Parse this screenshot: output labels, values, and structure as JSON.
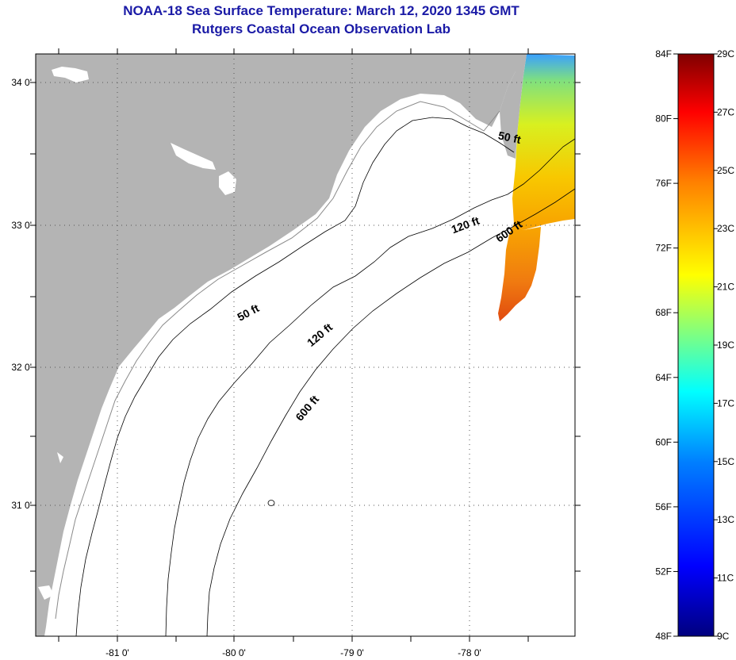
{
  "title": {
    "line1": "NOAA-18 Sea Surface Temperature:  March 12, 2020 1345 GMT",
    "line2": "Rutgers Coastal Ocean Observation Lab"
  },
  "map": {
    "lon_range": [
      -81.68,
      -77.2
    ],
    "lat_range": [
      30.2,
      34.2
    ],
    "lon_ticks": [
      "-81 0'",
      "-80 0'",
      "-79 0'",
      "-78 0'"
    ],
    "lat_ticks": [
      "34 0'",
      "33 0'",
      "32 0'",
      "31 0'"
    ],
    "land_color": "#b4b4b4",
    "water_color": "#ffffff",
    "grid": "dotted"
  },
  "contours": {
    "labels": [
      {
        "text": "50 ft",
        "lon": -77.75,
        "lat": 33.6,
        "angle": 12
      },
      {
        "text": "120 ft",
        "lon": -78.1,
        "lat": 33.0,
        "angle": -20
      },
      {
        "text": "600 ft",
        "lon": -77.73,
        "lat": 32.96,
        "angle": -35
      },
      {
        "text": "50 ft",
        "lon": -79.9,
        "lat": 32.4,
        "angle": -28
      },
      {
        "text": "120 ft",
        "lon": -79.3,
        "lat": 32.25,
        "angle": -40
      },
      {
        "text": "600 ft",
        "lon": -79.4,
        "lat": 31.75,
        "angle": -50
      }
    ]
  },
  "colorbar": {
    "fahrenheit": [
      "84F",
      "80F",
      "76F",
      "72F",
      "68F",
      "64F",
      "60F",
      "56F",
      "52F",
      "48F"
    ],
    "celsius": [
      "29C",
      "27C",
      "25C",
      "23C",
      "21C",
      "19C",
      "17C",
      "15C",
      "13C",
      "11C",
      "9C"
    ],
    "gradient_colors": [
      "#00007f",
      "#0000ff",
      "#0080ff",
      "#00ffff",
      "#80ff80",
      "#ffff00",
      "#ff8000",
      "#ff0000",
      "#7f0000"
    ]
  }
}
